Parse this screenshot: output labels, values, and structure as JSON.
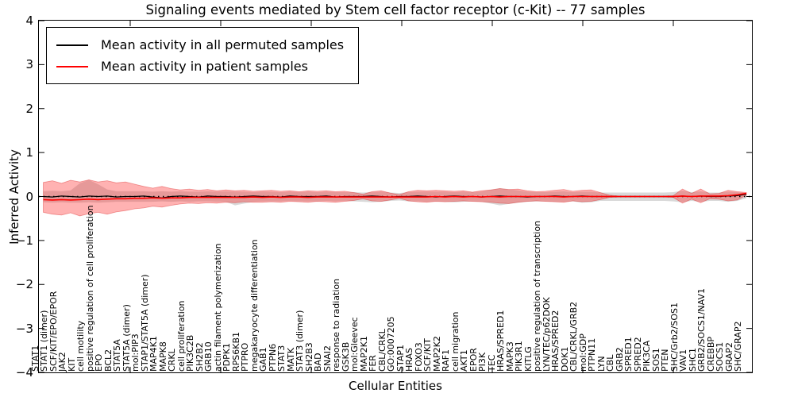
{
  "title": "Signaling events mediated by Stem cell factor receptor (c-Kit) -- 77 samples",
  "legend": {
    "items": [
      {
        "label": "Mean activity in all permuted samples",
        "color": "#000000"
      },
      {
        "label": "Mean activity in patient samples",
        "color": "#ff0000"
      }
    ]
  },
  "axes": {
    "x_label": "Cellular Entities",
    "y_label": "Inferred Activity",
    "y_tick_labels": [
      "4",
      "3",
      "2",
      "1",
      "0",
      "−1",
      "−2",
      "−3",
      "−4"
    ],
    "y_tick_values": [
      4,
      3,
      2,
      1,
      0,
      -1,
      -2,
      -3,
      -4
    ]
  },
  "chart_data": {
    "type": "line",
    "title": "Signaling events mediated by Stem cell factor receptor (c-Kit) -- 77 samples",
    "xlabel": "Cellular Entities",
    "ylabel": "Inferred Activity",
    "ylim": [
      -4,
      4
    ],
    "grid": false,
    "legend_position": "upper left",
    "zero_line": {
      "style": "dotted",
      "color": "#000000",
      "value": 0
    },
    "categories": [
      "STAT1",
      "STAT1 (dimer)",
      "SCF/KIT/EPO/EPOR",
      "JAK2",
      "KIT",
      "cell motility",
      "positive regulation of cell proliferation",
      "EPO",
      "BCL2",
      "STAT5A",
      "STAT5A (dimer)",
      "mol:PIP3",
      "STAP1/STAT5A (dimer)",
      "MAP4K1",
      "MAPK8",
      "CRKL",
      "cell proliferation",
      "PIK3C2B",
      "SH2B2",
      "GRB10",
      "actin filament polymerization",
      "PDPK1",
      "RPS6KB1",
      "PTPRO",
      "megakaryocyte differentiation",
      "GAB1",
      "PTPN6",
      "STAT3",
      "MATK",
      "STAT3 (dimer)",
      "SH2B3",
      "BAD",
      "SNAI2",
      "response to radiation",
      "GSK3B",
      "mol:Gleevec",
      "MAP2K1",
      "FER",
      "CBL/CRKL",
      "GO:0007205",
      "STAP1",
      "HRAS",
      "FOXO3",
      "SCF/KIT",
      "MAP2K2",
      "RAF1",
      "cell migration",
      "AKT1",
      "EPOR",
      "PI3K",
      "TEC",
      "HRAS/SPRED1",
      "MAPK3",
      "PIK3R1",
      "KITLG",
      "positive regulation of transcription",
      "LYN/TEC/p62DOK",
      "HRAS/SPRED2",
      "DOK1",
      "CBL/CRKL/GRB2",
      "mol:GDP",
      "PTPN11",
      "LYN",
      "CBL",
      "GRB2",
      "SPRED1",
      "SPRED2",
      "PIK3CA",
      "SOS1",
      "PTEN",
      "SHC/Grb2/SOS1",
      "VAV1",
      "SHC1",
      "GRB2/SOCS1/NAV1",
      "CREBBP",
      "SOCS1",
      "GRAP2",
      "SHC/GRAP2"
    ],
    "series": [
      {
        "name": "Mean activity in all permuted samples",
        "color": "#000000",
        "values": [
          0.0,
          -0.01,
          0.01,
          0.0,
          -0.01,
          0.01,
          0.0,
          0.01,
          -0.01,
          0.0,
          0.0,
          0.01,
          -0.01,
          -0.03,
          0.0,
          0.01,
          0.0,
          -0.01,
          0.01,
          0.0,
          0.0,
          -0.01,
          0.0,
          0.01,
          0.0,
          0.0,
          -0.01,
          0.01,
          0.0,
          0.0,
          0.0,
          0.01,
          -0.01,
          0.0,
          0.0,
          0.0,
          0.01,
          0.0,
          -0.01,
          0.0,
          0.0,
          0.01,
          0.0,
          -0.01,
          0.0,
          0.01,
          0.0,
          0.0,
          -0.01,
          0.0,
          0.01,
          0.0,
          0.0,
          -0.01,
          0.0,
          0.0,
          0.01,
          0.0,
          0.0,
          0.01,
          0.0,
          0.0,
          0.0,
          0.0,
          0.0,
          0.0,
          0.0,
          0.0,
          0.0,
          0.0,
          0.01,
          0.0,
          0.01,
          0.0,
          0.0,
          0.01,
          0.02,
          0.05
        ]
      },
      {
        "name": "Mean activity in patient samples",
        "color": "#ff0000",
        "values": [
          -0.07,
          -0.08,
          -0.07,
          -0.08,
          -0.07,
          -0.06,
          -0.07,
          -0.06,
          -0.05,
          -0.05,
          -0.04,
          -0.04,
          -0.03,
          -0.04,
          -0.03,
          -0.03,
          -0.02,
          -0.02,
          -0.02,
          -0.02,
          -0.02,
          -0.02,
          -0.02,
          -0.01,
          -0.02,
          -0.01,
          -0.02,
          -0.01,
          -0.01,
          -0.02,
          -0.01,
          -0.01,
          -0.01,
          -0.01,
          -0.01,
          -0.01,
          -0.01,
          -0.01,
          -0.01,
          -0.01,
          -0.01,
          -0.01,
          -0.01,
          0.0,
          -0.01,
          0.0,
          -0.01,
          0.0,
          -0.01,
          0.0,
          -0.01,
          0.0,
          0.0,
          0.0,
          0.0,
          0.0,
          0.0,
          -0.01,
          0.0,
          0.0,
          0.0,
          0.0,
          0.0,
          0.0,
          0.0,
          0.0,
          0.0,
          0.0,
          0.0,
          0.0,
          0.01,
          0.0,
          0.01,
          0.01,
          0.01,
          0.02,
          0.04,
          0.07
        ]
      }
    ],
    "bands": [
      {
        "name": "permuted samples spread",
        "fill": "rgba(130,130,130,0.30)",
        "upper": [
          0.12,
          0.13,
          0.12,
          0.14,
          0.3,
          0.38,
          0.28,
          0.16,
          0.12,
          0.12,
          0.12,
          0.12,
          0.11,
          0.12,
          0.11,
          0.12,
          0.11,
          0.11,
          0.12,
          0.11,
          0.12,
          0.11,
          0.11,
          0.1,
          0.11,
          0.11,
          0.1,
          0.11,
          0.1,
          0.11,
          0.1,
          0.11,
          0.1,
          0.1,
          0.1,
          0.09,
          0.1,
          0.11,
          0.09,
          0.08,
          0.1,
          0.11,
          0.11,
          0.11,
          0.11,
          0.1,
          0.11,
          0.1,
          0.11,
          0.15,
          0.19,
          0.16,
          0.14,
          0.11,
          0.1,
          0.1,
          0.11,
          0.12,
          0.1,
          0.11,
          0.11,
          0.09,
          0.09,
          0.09,
          0.09,
          0.09,
          0.09,
          0.09,
          0.09,
          0.1,
          0.13,
          0.1,
          0.12,
          0.09,
          0.09,
          0.11,
          0.1,
          0.08
        ],
        "lower": [
          -0.13,
          -0.14,
          -0.13,
          -0.14,
          -0.14,
          -0.13,
          -0.14,
          -0.13,
          -0.12,
          -0.12,
          -0.12,
          -0.12,
          -0.12,
          -0.11,
          -0.12,
          -0.11,
          -0.12,
          -0.11,
          -0.11,
          -0.12,
          -0.12,
          -0.2,
          -0.16,
          -0.12,
          -0.11,
          -0.11,
          -0.11,
          -0.1,
          -0.11,
          -0.11,
          -0.11,
          -0.1,
          -0.11,
          -0.1,
          -0.11,
          -0.12,
          -0.13,
          -0.12,
          -0.1,
          -0.09,
          -0.11,
          -0.11,
          -0.12,
          -0.11,
          -0.12,
          -0.13,
          -0.12,
          -0.11,
          -0.12,
          -0.16,
          -0.2,
          -0.17,
          -0.14,
          -0.12,
          -0.11,
          -0.11,
          -0.12,
          -0.12,
          -0.11,
          -0.14,
          -0.13,
          -0.1,
          -0.1,
          -0.1,
          -0.1,
          -0.1,
          -0.1,
          -0.1,
          -0.1,
          -0.11,
          -0.13,
          -0.1,
          -0.12,
          -0.1,
          -0.1,
          -0.12,
          -0.1,
          -0.04
        ]
      },
      {
        "name": "patient samples spread",
        "fill": "rgba(255,35,35,0.35)",
        "upper": [
          0.32,
          0.36,
          0.3,
          0.37,
          0.33,
          0.38,
          0.33,
          0.36,
          0.31,
          0.33,
          0.28,
          0.23,
          0.19,
          0.23,
          0.18,
          0.15,
          0.17,
          0.14,
          0.16,
          0.13,
          0.15,
          0.13,
          0.14,
          0.12,
          0.13,
          0.14,
          0.12,
          0.13,
          0.11,
          0.13,
          0.12,
          0.13,
          0.11,
          0.12,
          0.09,
          0.05,
          0.11,
          0.13,
          0.08,
          0.04,
          0.11,
          0.14,
          0.13,
          0.14,
          0.13,
          0.12,
          0.13,
          0.1,
          0.13,
          0.15,
          0.18,
          0.16,
          0.17,
          0.13,
          0.11,
          0.12,
          0.14,
          0.16,
          0.12,
          0.14,
          0.15,
          0.09,
          0.03,
          0.01,
          0.01,
          0.01,
          0.01,
          0.01,
          0.01,
          0.02,
          0.17,
          0.07,
          0.17,
          0.06,
          0.07,
          0.14,
          0.11,
          0.09
        ],
        "lower": [
          -0.36,
          -0.4,
          -0.42,
          -0.37,
          -0.44,
          -0.39,
          -0.36,
          -0.4,
          -0.35,
          -0.32,
          -0.28,
          -0.26,
          -0.22,
          -0.24,
          -0.2,
          -0.17,
          -0.15,
          -0.16,
          -0.14,
          -0.15,
          -0.13,
          -0.14,
          -0.12,
          -0.13,
          -0.13,
          -0.12,
          -0.13,
          -0.11,
          -0.12,
          -0.13,
          -0.11,
          -0.12,
          -0.13,
          -0.11,
          -0.09,
          -0.05,
          -0.1,
          -0.11,
          -0.08,
          -0.04,
          -0.1,
          -0.12,
          -0.13,
          -0.11,
          -0.12,
          -0.11,
          -0.1,
          -0.11,
          -0.12,
          -0.13,
          -0.15,
          -0.16,
          -0.13,
          -0.11,
          -0.1,
          -0.11,
          -0.12,
          -0.13,
          -0.1,
          -0.12,
          -0.11,
          -0.07,
          -0.02,
          -0.01,
          -0.01,
          -0.01,
          -0.01,
          -0.01,
          -0.01,
          -0.02,
          -0.15,
          -0.06,
          -0.14,
          -0.05,
          -0.06,
          -0.1,
          -0.08,
          0.03
        ]
      }
    ]
  }
}
